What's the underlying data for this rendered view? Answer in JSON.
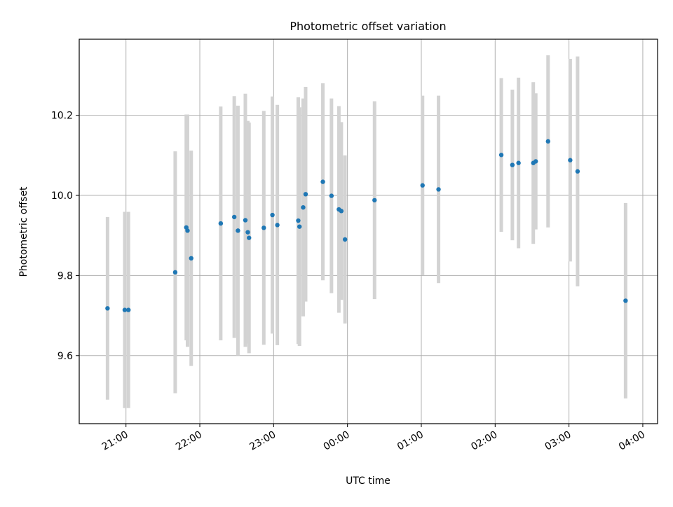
{
  "chart_data": {
    "type": "scatter",
    "title": "Photometric offset variation",
    "xlabel": "UTC time",
    "ylabel": "Photometric offset",
    "x_unit": "hours of UTC time",
    "xlim": [
      "20:22",
      "04:12"
    ],
    "ylim": [
      9.43,
      10.39
    ],
    "grid": true,
    "x_ticks": [
      "21:00",
      "22:00",
      "23:00",
      "00:00",
      "01:00",
      "02:00",
      "03:00",
      "04:00"
    ],
    "y_ticks": [
      "9.6",
      "9.8",
      "10.0",
      "10.2"
    ],
    "y_tick_values": [
      9.6,
      9.8,
      10.0,
      10.2
    ],
    "colors": {
      "marker": "#1f77b4",
      "errorbar": "#d3d3d3",
      "grid": "#b0b0b0"
    },
    "points": [
      {
        "x": "20:45",
        "y": 9.718,
        "err": 0.228
      },
      {
        "x": "20:59",
        "y": 9.714,
        "err": 0.245
      },
      {
        "x": "21:02",
        "y": 9.714,
        "err": 0.245
      },
      {
        "x": "21:40",
        "y": 9.808,
        "err": 0.302
      },
      {
        "x": "21:49",
        "y": 9.92,
        "err": 0.282
      },
      {
        "x": "21:50",
        "y": 9.912,
        "err": 0.29
      },
      {
        "x": "21:53",
        "y": 9.843,
        "err": 0.269
      },
      {
        "x": "22:17",
        "y": 9.93,
        "err": 0.292
      },
      {
        "x": "22:28",
        "y": 9.946,
        "err": 0.302
      },
      {
        "x": "22:31",
        "y": 9.912,
        "err": 0.312
      },
      {
        "x": "22:37",
        "y": 9.938,
        "err": 0.316
      },
      {
        "x": "22:39",
        "y": 9.908,
        "err": 0.278
      },
      {
        "x": "22:40",
        "y": 9.894,
        "err": 0.288
      },
      {
        "x": "22:52",
        "y": 9.919,
        "err": 0.292
      },
      {
        "x": "22:59",
        "y": 9.951,
        "err": 0.296
      },
      {
        "x": "23:03",
        "y": 9.926,
        "err": 0.3
      },
      {
        "x": "23:20",
        "y": 9.937,
        "err": 0.308
      },
      {
        "x": "23:21",
        "y": 9.922,
        "err": 0.298
      },
      {
        "x": "23:24",
        "y": 9.97,
        "err": 0.272
      },
      {
        "x": "23:26",
        "y": 10.003,
        "err": 0.268
      },
      {
        "x": "23:40",
        "y": 10.034,
        "err": 0.246
      },
      {
        "x": "23:47",
        "y": 9.999,
        "err": 0.243
      },
      {
        "x": "23:53",
        "y": 9.965,
        "err": 0.258
      },
      {
        "x": "23:55",
        "y": 9.961,
        "err": 0.222
      },
      {
        "x": "23:58",
        "y": 9.89,
        "err": 0.21
      },
      {
        "x": "00:22",
        "y": 9.988,
        "err": 0.247
      },
      {
        "x": "01:01",
        "y": 10.025,
        "err": 0.224
      },
      {
        "x": "01:14",
        "y": 10.015,
        "err": 0.234
      },
      {
        "x": "02:05",
        "y": 10.101,
        "err": 0.192
      },
      {
        "x": "02:14",
        "y": 10.076,
        "err": 0.188
      },
      {
        "x": "02:19",
        "y": 10.081,
        "err": 0.213
      },
      {
        "x": "02:31",
        "y": 10.081,
        "err": 0.202
      },
      {
        "x": "02:33",
        "y": 10.085,
        "err": 0.17
      },
      {
        "x": "02:43",
        "y": 10.135,
        "err": 0.215
      },
      {
        "x": "03:01",
        "y": 10.088,
        "err": 0.253
      },
      {
        "x": "03:07",
        "y": 10.06,
        "err": 0.287
      },
      {
        "x": "03:46",
        "y": 9.737,
        "err": 0.244
      }
    ]
  }
}
